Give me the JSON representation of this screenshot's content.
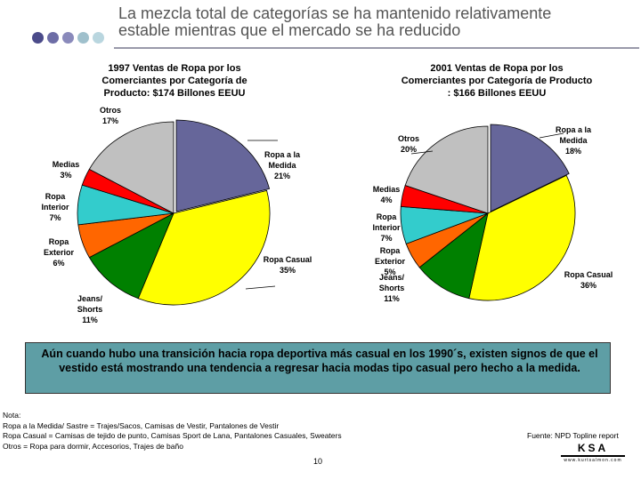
{
  "header": {
    "title_line1": "La mezcla total de categorías se ha mantenido relativamente",
    "title_line2": "estable mientras que el mercado se ha reducido",
    "dot_colors": [
      "#4b4b8a",
      "#6d6da6",
      "#8a8abb",
      "#9fc0cc",
      "#b9d6df"
    ]
  },
  "chart_data": [
    {
      "type": "pie",
      "title_lines": [
        "1997 Ventas de Ropa por los",
        "Comerciantes por Categoría de",
        "Producto: $174 Billones EEUU"
      ],
      "slices": [
        {
          "key": "medida",
          "label_lines": [
            "Ropa a la",
            "Medida",
            "21%"
          ],
          "value": 21,
          "color": "#66669a"
        },
        {
          "key": "casual",
          "label_lines": [
            "Ropa Casual",
            "35%"
          ],
          "value": 35,
          "color": "#ffff00"
        },
        {
          "key": "jeans",
          "label_lines": [
            "Jeans/",
            "Shorts",
            "11%"
          ],
          "value": 11,
          "color": "#008000"
        },
        {
          "key": "exterior",
          "label_lines": [
            "Ropa",
            "Exterior",
            "6%"
          ],
          "value": 6,
          "color": "#ff6600"
        },
        {
          "key": "interior",
          "label_lines": [
            "Ropa",
            "Interior",
            "7%"
          ],
          "value": 7,
          "color": "#33cccc"
        },
        {
          "key": "medias",
          "label_lines": [
            "Medias",
            "3%"
          ],
          "value": 3,
          "color": "#ff0000"
        },
        {
          "key": "otros",
          "label_lines": [
            "Otros",
            "17%"
          ],
          "value": 17,
          "color": "#c0c0c0"
        }
      ]
    },
    {
      "type": "pie",
      "title_lines": [
        "2001 Ventas de Ropa por los",
        "Comerciantes por Categoría de Producto",
        ": $166 Billones EEUU"
      ],
      "slices": [
        {
          "key": "medida",
          "label_lines": [
            "Ropa a la",
            "Medida",
            "18%"
          ],
          "value": 18,
          "color": "#66669a"
        },
        {
          "key": "casual",
          "label_lines": [
            "Ropa Casual",
            "36%"
          ],
          "value": 36,
          "color": "#ffff00"
        },
        {
          "key": "jeans",
          "label_lines": [
            "Jeans/",
            "Shorts",
            "11%"
          ],
          "value": 11,
          "color": "#008000"
        },
        {
          "key": "exterior",
          "label_lines": [
            "Ropa",
            "Exterior",
            "5%"
          ],
          "value": 5,
          "color": "#ff6600"
        },
        {
          "key": "interior",
          "label_lines": [
            "Ropa",
            "Interior",
            "7%"
          ],
          "value": 7,
          "color": "#33cccc"
        },
        {
          "key": "medias",
          "label_lines": [
            "Medias",
            "4%"
          ],
          "value": 4,
          "color": "#ff0000"
        },
        {
          "key": "otros",
          "label_lines": [
            "Otros",
            "20%"
          ],
          "value": 20,
          "color": "#c0c0c0"
        }
      ]
    }
  ],
  "callout": {
    "text": "Aún cuando hubo una transición hacia ropa deportiva más casual en los 1990´s, existen signos de que el vestido está mostrando una tendencia a regresar hacia modas tipo casual pero hecho a la medida.",
    "background": "#5e9ea5"
  },
  "notes": {
    "lines": [
      "Nota:",
      "Ropa a la Medida/ Sastre = Trajes/Sacos, Camisas de Vestir, Pantalones de Vestir",
      "Ropa Casual = Camisas de tejido de punto, Camisas Sport de Lana, Pantalones Casuales, Sweaters",
      "Otros = Ropa para dormir, Accesorios, Trajes de baño"
    ]
  },
  "source": "Fuente: NPD Topline report",
  "page_number": "10",
  "logo": {
    "text": "KSA",
    "subtext": "www.kurtsalmon.com"
  }
}
